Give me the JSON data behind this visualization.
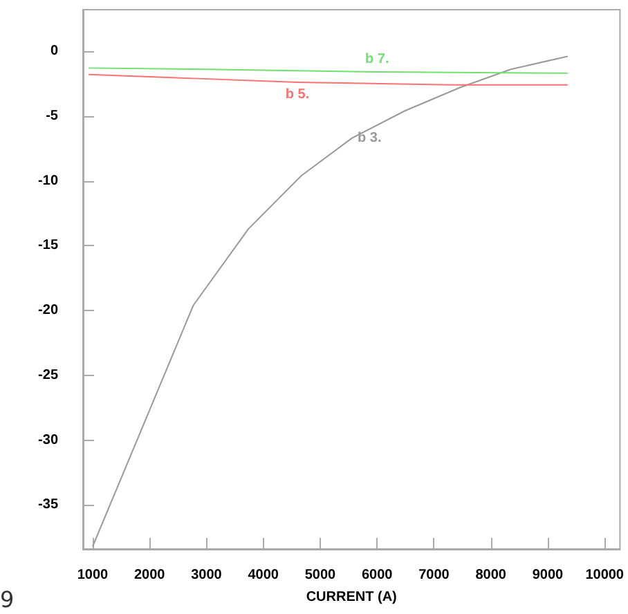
{
  "chart_data": {
    "type": "line",
    "xlabel": "CURRENT (A)",
    "xlim": [
      830,
      10270
    ],
    "ylim": [
      -38.4,
      3.2
    ],
    "xticks": [
      1000,
      2000,
      3000,
      4000,
      5000,
      6000,
      7000,
      8000,
      9000,
      10000
    ],
    "yticks": [
      0,
      -5,
      -10,
      -15,
      -20,
      -25,
      -30,
      -35
    ],
    "grid": false,
    "legend": false,
    "marker": "none",
    "line_style": "solid",
    "series": [
      {
        "name": "b 3.",
        "color": "#999999",
        "x": [
          1000,
          2770,
          3740,
          4670,
          5560,
          6490,
          7460,
          8350,
          9350
        ],
        "values": [
          -38.2,
          -19.6,
          -13.7,
          -9.6,
          -6.7,
          -4.6,
          -2.8,
          -1.4,
          -0.4
        ]
      },
      {
        "name": "b 5.",
        "color": "#ff7070",
        "x": [
          930,
          2770,
          4600,
          7300,
          9350
        ],
        "values": [
          -1.8,
          -2.1,
          -2.4,
          -2.6,
          -2.6
        ]
      },
      {
        "name": "b 7.",
        "color": "#70e070",
        "x": [
          930,
          3000,
          6000,
          9350
        ],
        "values": [
          -1.3,
          -1.4,
          -1.6,
          -1.7
        ]
      }
    ],
    "annotations": [
      "9"
    ]
  }
}
